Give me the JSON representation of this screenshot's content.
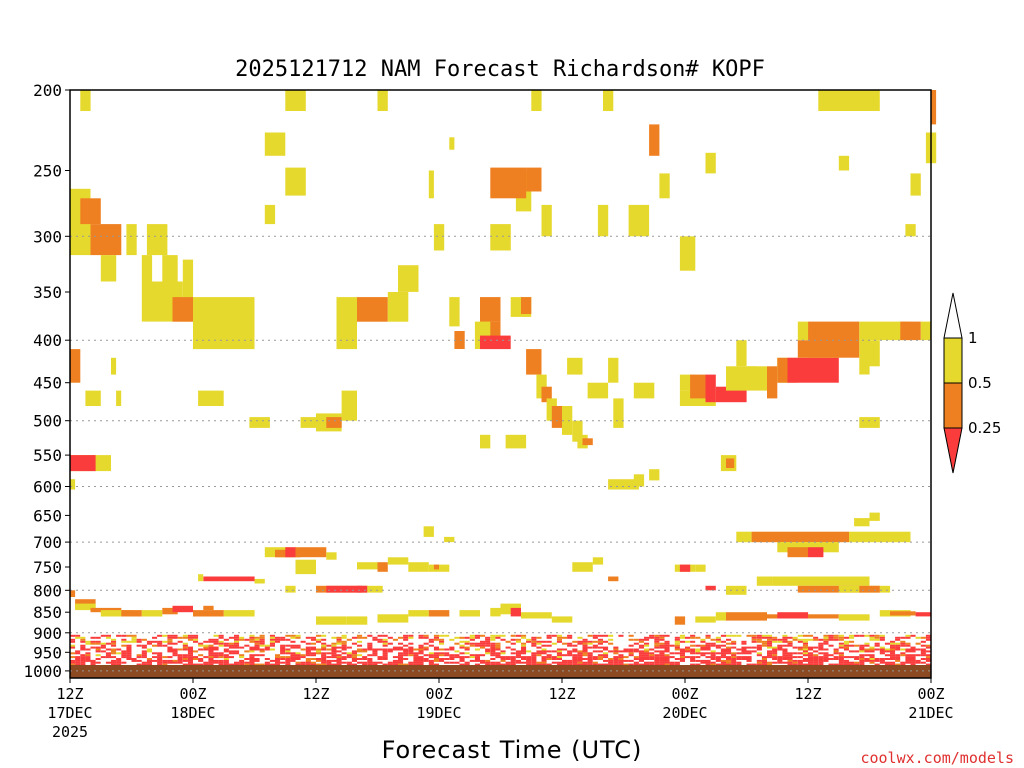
{
  "chart_data": {
    "type": "heatmap",
    "title": "2025121712 NAM Forecast Richardson# KOPF",
    "xlabel": "Forecast Time (UTC)",
    "ylabel": "",
    "watermark": "coolwx.com/models",
    "y_axis": {
      "scale": "pressure (log)",
      "range": [
        1020,
        200
      ],
      "ticks": [
        200,
        250,
        300,
        350,
        400,
        450,
        500,
        550,
        600,
        650,
        700,
        750,
        800,
        850,
        900,
        950,
        1000
      ],
      "dotted_grid": [
        300,
        400,
        500,
        600,
        700,
        800,
        900,
        1000
      ]
    },
    "x_axis": {
      "range_hours": [
        0,
        84
      ],
      "ticks": [
        {
          "hour": 0,
          "line1": "12Z",
          "line2": "17DEC",
          "line3": "2025"
        },
        {
          "hour": 12,
          "line1": "00Z",
          "line2": "18DEC",
          "line3": ""
        },
        {
          "hour": 24,
          "line1": "12Z",
          "line2": "",
          "line3": ""
        },
        {
          "hour": 36,
          "line1": "00Z",
          "line2": "19DEC",
          "line3": ""
        },
        {
          "hour": 48,
          "line1": "12Z",
          "line2": "",
          "line3": ""
        },
        {
          "hour": 60,
          "line1": "00Z",
          "line2": "20DEC",
          "line3": ""
        },
        {
          "hour": 72,
          "line1": "12Z",
          "line2": "",
          "line3": ""
        },
        {
          "hour": 84,
          "line1": "00Z",
          "line2": "21DEC",
          "line3": ""
        }
      ]
    },
    "colorbar": {
      "levels": [
        {
          "label": "1",
          "color": "#ffffff"
        },
        {
          "label": "0.5",
          "color": "#e6d92e"
        },
        {
          "label": "0.25",
          "color": "#ee8022"
        },
        {
          "label": "",
          "color": "#fb3c3c"
        }
      ]
    },
    "colors": {
      "yellow": "#e6d92e",
      "orange": "#ee8022",
      "red": "#fb3c3c",
      "ground": "#8b4a22"
    },
    "cells": [
      [
        1,
        2,
        200,
        212,
        "y"
      ],
      [
        21,
        23,
        200,
        212,
        "y"
      ],
      [
        30,
        31,
        200,
        212,
        "y"
      ],
      [
        45,
        46,
        200,
        212,
        "y"
      ],
      [
        52,
        53,
        200,
        212,
        "y"
      ],
      [
        73,
        79,
        200,
        212,
        "y"
      ],
      [
        84,
        84.5,
        200,
        220,
        "o"
      ],
      [
        19,
        21,
        225,
        240,
        "y"
      ],
      [
        56.5,
        57.5,
        220,
        240,
        "o"
      ],
      [
        62,
        63,
        238,
        252,
        "y"
      ],
      [
        37,
        37.5,
        228,
        236,
        "y"
      ],
      [
        75,
        76,
        240,
        250,
        "y"
      ],
      [
        0,
        2,
        263,
        316,
        "y"
      ],
      [
        1,
        3,
        270,
        290,
        "o"
      ],
      [
        2,
        5,
        290,
        316,
        "o"
      ],
      [
        3,
        4.5,
        316,
        340,
        "y"
      ],
      [
        5.5,
        6.5,
        290,
        316,
        "y"
      ],
      [
        7.5,
        9.5,
        290,
        316,
        "y"
      ],
      [
        21,
        23,
        248,
        268,
        "y"
      ],
      [
        19,
        20,
        275,
        290,
        "y"
      ],
      [
        35.5,
        36.5,
        290,
        312,
        "y"
      ],
      [
        41,
        43,
        290,
        312,
        "y"
      ],
      [
        43.5,
        45,
        250,
        280,
        "y"
      ],
      [
        41,
        44.5,
        248,
        270,
        "o"
      ],
      [
        44.5,
        46,
        248,
        265,
        "o"
      ],
      [
        46,
        47,
        275,
        300,
        "y"
      ],
      [
        51.5,
        52.5,
        275,
        300,
        "y"
      ],
      [
        54.5,
        56.5,
        275,
        300,
        "y"
      ],
      [
        57.5,
        58.5,
        252,
        270,
        "y"
      ],
      [
        59.5,
        61,
        300,
        330,
        "y"
      ],
      [
        35,
        35.5,
        250,
        270,
        "y"
      ],
      [
        82,
        83,
        252,
        268,
        "y"
      ],
      [
        81.5,
        82.5,
        290,
        300,
        "y"
      ],
      [
        83.5,
        84.5,
        225,
        245,
        "y"
      ],
      [
        7,
        8,
        316,
        340,
        "y"
      ],
      [
        9,
        10.5,
        316,
        345,
        "y"
      ],
      [
        7,
        10,
        340,
        380,
        "y"
      ],
      [
        10,
        11,
        340,
        365,
        "y"
      ],
      [
        11,
        12,
        320,
        380,
        "y"
      ],
      [
        10,
        12,
        355,
        380,
        "o"
      ],
      [
        12,
        18,
        355,
        410,
        "y"
      ],
      [
        26,
        28,
        355,
        410,
        "y"
      ],
      [
        28,
        31,
        355,
        380,
        "o"
      ],
      [
        31,
        33,
        350,
        380,
        "y"
      ],
      [
        32,
        34,
        325,
        350,
        "y"
      ],
      [
        37,
        38,
        355,
        385,
        "y"
      ],
      [
        37.5,
        38.5,
        390,
        410,
        "o"
      ],
      [
        40,
        42,
        355,
        380,
        "o"
      ],
      [
        40,
        42,
        380,
        400,
        "o"
      ],
      [
        39.5,
        41,
        380,
        410,
        "y"
      ],
      [
        40,
        43,
        395,
        410,
        "r"
      ],
      [
        43,
        45,
        355,
        375,
        "y"
      ],
      [
        44,
        45,
        355,
        372,
        "o"
      ],
      [
        44.5,
        46,
        410,
        440,
        "o"
      ],
      [
        45.5,
        46.5,
        440,
        470,
        "y"
      ],
      [
        46,
        47,
        455,
        475,
        "o"
      ],
      [
        46.5,
        47.5,
        470,
        500,
        "y"
      ],
      [
        47,
        48,
        480,
        510,
        "o"
      ],
      [
        48,
        49,
        480,
        520,
        "y"
      ],
      [
        49,
        50,
        500,
        530,
        "y"
      ],
      [
        48.5,
        50,
        420,
        440,
        "y"
      ],
      [
        50.5,
        52.5,
        450,
        470,
        "y"
      ],
      [
        52.5,
        53.5,
        420,
        450,
        "y"
      ],
      [
        53,
        54,
        470,
        510,
        "y"
      ],
      [
        55,
        57,
        450,
        470,
        "y"
      ],
      [
        0,
        1,
        410,
        450,
        "o"
      ],
      [
        4,
        4.5,
        420,
        440,
        "y"
      ],
      [
        1.5,
        3,
        460,
        480,
        "y"
      ],
      [
        4.5,
        5,
        460,
        480,
        "y"
      ],
      [
        12.5,
        15,
        460,
        480,
        "y"
      ],
      [
        17.5,
        19.5,
        495,
        510,
        "y"
      ],
      [
        22.5,
        24,
        495,
        510,
        "y"
      ],
      [
        24,
        26.5,
        490,
        515,
        "y"
      ],
      [
        25,
        26.5,
        495,
        510,
        "o"
      ],
      [
        26.5,
        28,
        460,
        500,
        "y"
      ],
      [
        49.5,
        50.5,
        520,
        540,
        "y"
      ],
      [
        50,
        51,
        525,
        535,
        "o"
      ],
      [
        59.5,
        63,
        460,
        480,
        "y"
      ],
      [
        59.5,
        61,
        440,
        460,
        "y"
      ],
      [
        60.5,
        62,
        440,
        470,
        "o"
      ],
      [
        62,
        63,
        440,
        475,
        "r"
      ],
      [
        63,
        66,
        455,
        475,
        "r"
      ],
      [
        64,
        68,
        430,
        460,
        "y"
      ],
      [
        65,
        66,
        400,
        430,
        "y"
      ],
      [
        68,
        69,
        430,
        470,
        "o"
      ],
      [
        69,
        70,
        420,
        450,
        "y"
      ],
      [
        69,
        71,
        420,
        450,
        "o"
      ],
      [
        70,
        75,
        420,
        450,
        "r"
      ],
      [
        71,
        75,
        400,
        420,
        "o"
      ],
      [
        72,
        77,
        380,
        420,
        "o"
      ],
      [
        77,
        78,
        380,
        440,
        "y"
      ],
      [
        78,
        79,
        400,
        430,
        "y"
      ],
      [
        78,
        80,
        380,
        400,
        "y"
      ],
      [
        80,
        82,
        380,
        400,
        "y"
      ],
      [
        81,
        83,
        380,
        400,
        "o"
      ],
      [
        83,
        84,
        380,
        400,
        "y"
      ],
      [
        71,
        72,
        380,
        400,
        "y"
      ],
      [
        77,
        79,
        495,
        510,
        "y"
      ],
      [
        66,
        67,
        430,
        450,
        "y"
      ],
      [
        0,
        4,
        550,
        575,
        "y"
      ],
      [
        0,
        2.5,
        550,
        575,
        "r"
      ],
      [
        52.5,
        55.5,
        588,
        605,
        "y"
      ],
      [
        55,
        56,
        580,
        600,
        "y"
      ],
      [
        56.5,
        57.5,
        572,
        590,
        "y"
      ],
      [
        40,
        41,
        520,
        540,
        "y"
      ],
      [
        42.5,
        44.5,
        520,
        540,
        "y"
      ],
      [
        63.5,
        65,
        550,
        575,
        "y"
      ],
      [
        64,
        64.8,
        555,
        570,
        "o"
      ],
      [
        0,
        0.5,
        588,
        605,
        "y"
      ],
      [
        76.5,
        78,
        655,
        670,
        "y"
      ],
      [
        78,
        79,
        645,
        660,
        "y"
      ],
      [
        34.5,
        35.5,
        670,
        690,
        "y"
      ],
      [
        36.5,
        37.5,
        690,
        700,
        "y"
      ],
      [
        65,
        66.5,
        680,
        700,
        "y"
      ],
      [
        66.5,
        76,
        680,
        700,
        "o"
      ],
      [
        76,
        82,
        680,
        700,
        "y"
      ],
      [
        69,
        75,
        700,
        720,
        "y"
      ],
      [
        70,
        72,
        710,
        730,
        "o"
      ],
      [
        72,
        73.5,
        710,
        730,
        "r"
      ],
      [
        19,
        21.5,
        710,
        730,
        "y"
      ],
      [
        20,
        22.5,
        715,
        730,
        "o"
      ],
      [
        21,
        22,
        710,
        730,
        "r"
      ],
      [
        22,
        25,
        710,
        730,
        "o"
      ],
      [
        25,
        26,
        720,
        735,
        "y"
      ],
      [
        22,
        24,
        735,
        765,
        "y"
      ],
      [
        13,
        18,
        770,
        780,
        "r"
      ],
      [
        12.5,
        13,
        765,
        780,
        "y"
      ],
      [
        18,
        19,
        775,
        785,
        "y"
      ],
      [
        28,
        30,
        740,
        755,
        "y"
      ],
      [
        30,
        31,
        740,
        760,
        "o"
      ],
      [
        31,
        33,
        730,
        745,
        "y"
      ],
      [
        33,
        35,
        740,
        760,
        "y"
      ],
      [
        35,
        37,
        745,
        760,
        "y"
      ],
      [
        35.5,
        36,
        745,
        755,
        "o"
      ],
      [
        49,
        51,
        740,
        760,
        "y"
      ],
      [
        51,
        52,
        730,
        745,
        "y"
      ],
      [
        59,
        61,
        745,
        760,
        "y"
      ],
      [
        59.5,
        60.5,
        745,
        760,
        "r"
      ],
      [
        61,
        62,
        745,
        760,
        "y"
      ],
      [
        52.5,
        53.5,
        770,
        780,
        "o"
      ],
      [
        62,
        63,
        790,
        800,
        "r"
      ],
      [
        64,
        66,
        790,
        810,
        "y"
      ],
      [
        67,
        68.5,
        770,
        790,
        "y"
      ],
      [
        68.5,
        78,
        770,
        790,
        "y"
      ],
      [
        71,
        77,
        790,
        805,
        "o"
      ],
      [
        75,
        79,
        790,
        805,
        "y"
      ],
      [
        79,
        80,
        790,
        805,
        "y"
      ],
      [
        77,
        79,
        790,
        805,
        "o"
      ],
      [
        24,
        29,
        790,
        805,
        "o"
      ],
      [
        25,
        26.5,
        790,
        805,
        "r"
      ],
      [
        26.5,
        28.5,
        790,
        805,
        "r"
      ],
      [
        28,
        29,
        790,
        805,
        "r"
      ],
      [
        29,
        30.5,
        790,
        805,
        "y"
      ],
      [
        21,
        22,
        790,
        805,
        "y"
      ],
      [
        0,
        0.5,
        800,
        815,
        "o"
      ],
      [
        0.5,
        2.5,
        820,
        840,
        "o"
      ],
      [
        0.5,
        2.5,
        830,
        845,
        "y"
      ],
      [
        2,
        5,
        840,
        850,
        "o"
      ],
      [
        3,
        6,
        845,
        860,
        "y"
      ],
      [
        5,
        7,
        845,
        860,
        "o"
      ],
      [
        7,
        9,
        845,
        860,
        "y"
      ],
      [
        9,
        10.5,
        840,
        855,
        "o"
      ],
      [
        10,
        12,
        835,
        850,
        "r"
      ],
      [
        12,
        15,
        845,
        860,
        "o"
      ],
      [
        15,
        18,
        845,
        860,
        "y"
      ],
      [
        13,
        14,
        835,
        845,
        "o"
      ],
      [
        24,
        27,
        860,
        880,
        "y"
      ],
      [
        27,
        29,
        860,
        880,
        "y"
      ],
      [
        30,
        33,
        855,
        875,
        "y"
      ],
      [
        33,
        35,
        845,
        860,
        "y"
      ],
      [
        35,
        37,
        845,
        860,
        "o"
      ],
      [
        38,
        40,
        845,
        860,
        "y"
      ],
      [
        41,
        42,
        840,
        860,
        "y"
      ],
      [
        42,
        44,
        830,
        855,
        "y"
      ],
      [
        43,
        44,
        840,
        860,
        "r"
      ],
      [
        44,
        47,
        850,
        865,
        "y"
      ],
      [
        47,
        49,
        860,
        875,
        "y"
      ],
      [
        59,
        60,
        860,
        880,
        "o"
      ],
      [
        61,
        63,
        860,
        875,
        "y"
      ],
      [
        63,
        64,
        850,
        870,
        "y"
      ],
      [
        64,
        66,
        850,
        870,
        "o"
      ],
      [
        66,
        68,
        850,
        870,
        "o"
      ],
      [
        68,
        70,
        855,
        865,
        "o"
      ],
      [
        69,
        72,
        850,
        865,
        "r"
      ],
      [
        72,
        75,
        855,
        865,
        "o"
      ],
      [
        75,
        78,
        855,
        870,
        "y"
      ],
      [
        79,
        82,
        845,
        860,
        "y"
      ],
      [
        80,
        82.5,
        848,
        858,
        "o"
      ],
      [
        82.5,
        84,
        850,
        860,
        "r"
      ]
    ]
  }
}
